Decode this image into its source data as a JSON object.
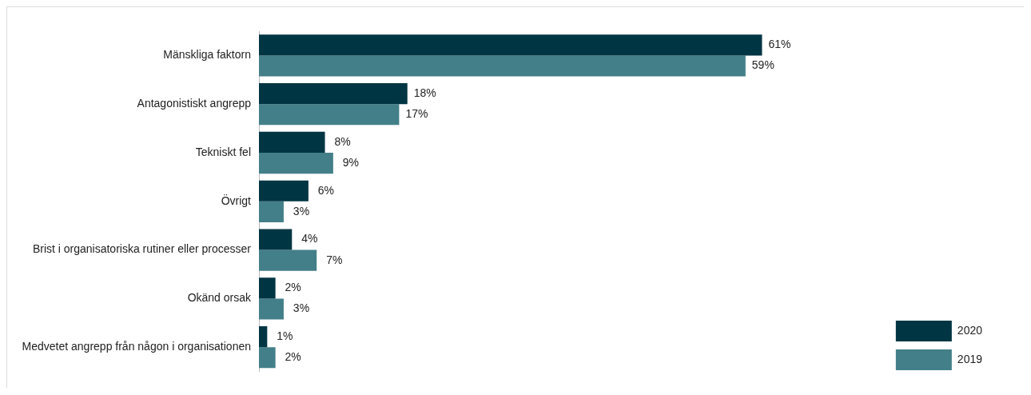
{
  "chart_data": {
    "type": "bar",
    "orientation": "horizontal",
    "categories": [
      "Mänskliga faktorn",
      "Antagonistiskt angrepp",
      "Tekniskt fel",
      "Övrigt",
      "Brist i organisatoriska rutiner eller processer",
      "Okänd orsak",
      "Medvetet angrepp från någon i organisationen"
    ],
    "series": [
      {
        "name": "2020",
        "color": "#003543",
        "values": [
          61,
          18,
          8,
          6,
          4,
          2,
          1
        ],
        "value_labels": [
          "61%",
          "18%",
          "8%",
          "6%",
          "4%",
          "2%",
          "1%"
        ]
      },
      {
        "name": "2019",
        "color": "#437f89",
        "values": [
          59,
          17,
          9,
          3,
          7,
          3,
          2
        ],
        "value_labels": [
          "59%",
          "17%",
          "9%",
          "3%",
          "7%",
          "3%",
          "2%"
        ]
      }
    ],
    "legend": "bottom right",
    "grid": false
  }
}
